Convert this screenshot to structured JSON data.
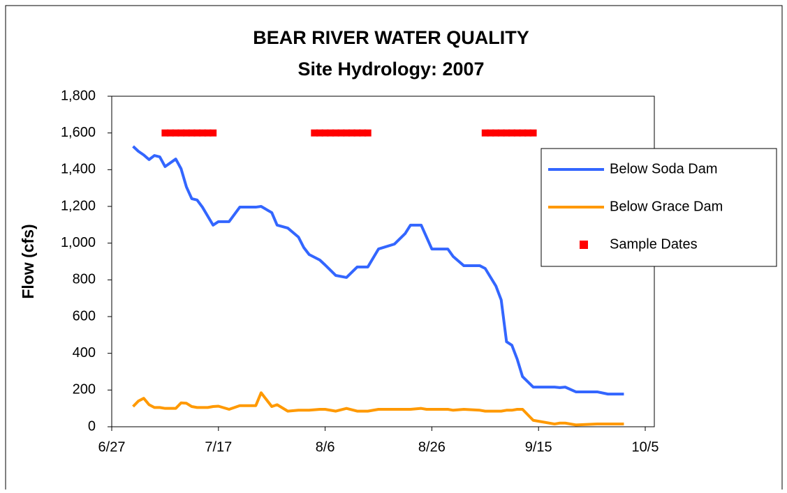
{
  "chart_data": {
    "type": "line",
    "title": "BEAR RIVER WATER QUALITY",
    "subtitle": "Site Hydrology: 2007",
    "y_label": "Flow (cfs)",
    "x": [
      "7/1",
      "7/2",
      "7/3",
      "7/4",
      "7/5",
      "7/6",
      "7/7",
      "7/9",
      "7/10",
      "7/11",
      "7/12",
      "7/13",
      "7/14",
      "7/15",
      "7/16",
      "7/17",
      "7/19",
      "7/21",
      "7/24",
      "7/25",
      "7/27",
      "7/28",
      "7/30",
      "8/1",
      "8/2",
      "8/3",
      "8/5",
      "8/6",
      "8/8",
      "8/10",
      "8/12",
      "8/14",
      "8/16",
      "8/19",
      "8/21",
      "8/22",
      "8/24",
      "8/25",
      "8/26",
      "8/29",
      "8/30",
      "9/1",
      "9/4",
      "9/5",
      "9/7",
      "9/8",
      "9/9",
      "9/10",
      "9/11",
      "9/12",
      "9/14",
      "9/18",
      "9/19",
      "9/20",
      "9/22",
      "9/26",
      "9/28",
      "10/1"
    ],
    "series": [
      {
        "name": "Below Soda Dam",
        "color": "#3366ff",
        "values": [
          1527,
          1500,
          1480,
          1455,
          1477,
          1470,
          1417,
          1458,
          1405,
          1306,
          1242,
          1235,
          1196,
          1147,
          1098,
          1117,
          1117,
          1196,
          1196,
          1200,
          1166,
          1098,
          1082,
          1033,
          976,
          938,
          908,
          881,
          824,
          813,
          870,
          870,
          968,
          995,
          1052,
          1098,
          1098,
          1033,
          968,
          968,
          927,
          877,
          877,
          862,
          767,
          691,
          463,
          444,
          368,
          273,
          216,
          216,
          213,
          216,
          190,
          190,
          178,
          178
        ]
      },
      {
        "name": "Below Grace Dam",
        "color": "#ff9900",
        "values": [
          110,
          140,
          155,
          120,
          105,
          105,
          100,
          100,
          130,
          128,
          110,
          105,
          105,
          105,
          110,
          112,
          95,
          115,
          115,
          185,
          110,
          120,
          85,
          90,
          90,
          90,
          95,
          95,
          85,
          100,
          85,
          85,
          95,
          95,
          95,
          95,
          100,
          95,
          95,
          95,
          90,
          95,
          90,
          85,
          85,
          85,
          90,
          90,
          95,
          95,
          35,
          15,
          20,
          20,
          10,
          15,
          15,
          15
        ]
      },
      {
        "name": "Sample Dates",
        "color": "#ff0000",
        "marker": "square",
        "x": [
          "7/7",
          "7/8",
          "7/9",
          "7/10",
          "7/11",
          "7/12",
          "7/13",
          "7/14",
          "7/15",
          "7/16",
          "8/4",
          "8/5",
          "8/6",
          "8/7",
          "8/8",
          "8/9",
          "8/10",
          "8/11",
          "8/12",
          "8/13",
          "8/14",
          "9/5",
          "9/6",
          "9/7",
          "9/8",
          "9/9",
          "9/10",
          "9/11",
          "9/12",
          "9/13",
          "9/14"
        ],
        "values": [
          1600,
          1600,
          1600,
          1600,
          1600,
          1600,
          1600,
          1600,
          1600,
          1600,
          1600,
          1600,
          1600,
          1600,
          1600,
          1600,
          1600,
          1600,
          1600,
          1600,
          1600,
          1600,
          1600,
          1600,
          1600,
          1600,
          1600,
          1600,
          1600,
          1600,
          1600
        ]
      }
    ],
    "xlim": [
      "6/27",
      "10/5"
    ],
    "xticks": [
      "6/27",
      "7/17",
      "8/6",
      "8/26",
      "9/15",
      "10/5"
    ],
    "ylim": [
      0,
      1800
    ],
    "yticks": [
      0,
      200,
      400,
      600,
      800,
      {
        "value": 1000,
        "label": "1,000"
      },
      {
        "value": 1200,
        "label": "1,200"
      },
      {
        "value": 1400,
        "label": "1,400"
      },
      {
        "value": 1600,
        "label": "1,600"
      },
      {
        "value": 1800,
        "label": "1,800"
      }
    ],
    "legend": "right"
  }
}
